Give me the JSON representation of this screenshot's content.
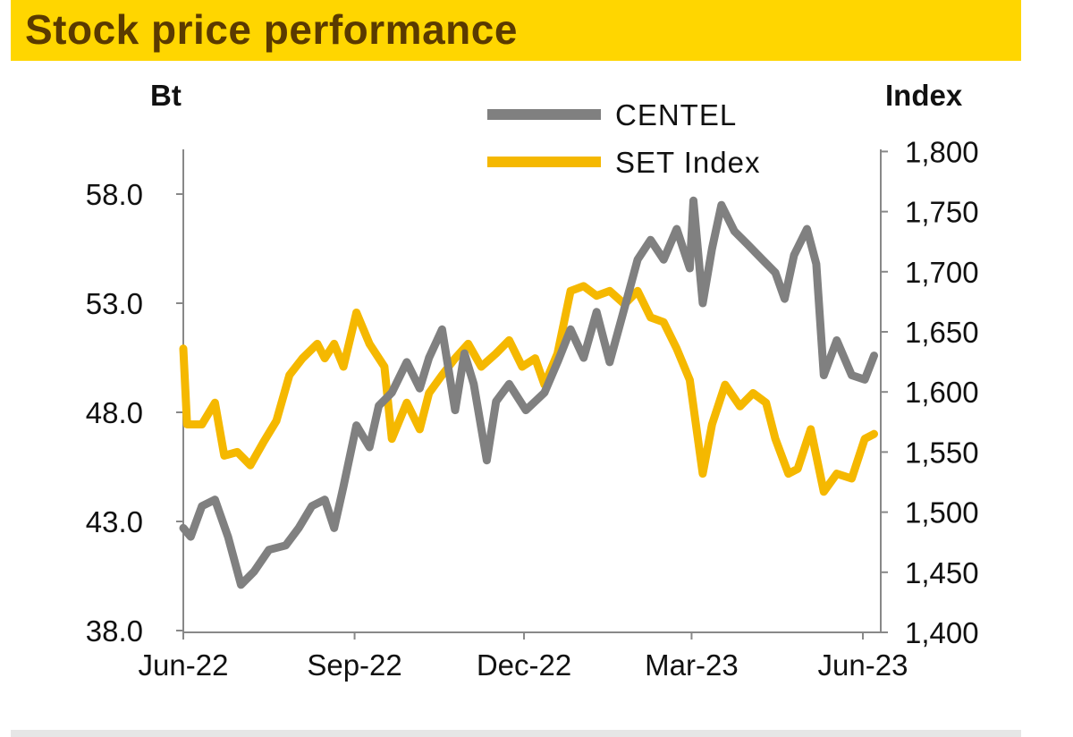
{
  "chart_data": {
    "type": "line",
    "title": "Stock price performance",
    "left_axis": {
      "label": "Bt",
      "ticks": [
        "58.0",
        "53.0",
        "48.0",
        "43.0",
        "38.0"
      ],
      "tick_values": [
        58,
        53,
        48,
        43,
        38
      ],
      "range": [
        38,
        60
      ]
    },
    "right_axis": {
      "label": "Index",
      "ticks": [
        "1,800",
        "1,750",
        "1,700",
        "1,650",
        "1,600",
        "1,550",
        "1,500",
        "1,450",
        "1,400"
      ],
      "tick_values": [
        1800,
        1750,
        1700,
        1650,
        1600,
        1550,
        1500,
        1450,
        1400
      ],
      "range": [
        1400,
        1800
      ]
    },
    "x_axis": {
      "ticks": [
        "Jun-22",
        "Sep-22",
        "Dec-22",
        "Mar-23",
        "Jun-23"
      ],
      "tick_dates": [
        "2022-06-01",
        "2022-09-01",
        "2022-12-01",
        "2023-03-01",
        "2023-06-01"
      ],
      "range": [
        "2022-06-01",
        "2023-06-08"
      ]
    },
    "legend": {
      "placement": "top-center"
    },
    "grid": false,
    "series": [
      {
        "name": "CENTEL",
        "axis": "left",
        "color": "#808080",
        "x": [
          "2022-06-01",
          "2022-06-05",
          "2022-06-11",
          "2022-06-18",
          "2022-06-25",
          "2022-07-02",
          "2022-07-09",
          "2022-07-17",
          "2022-07-26",
          "2022-08-02",
          "2022-08-09",
          "2022-08-16",
          "2022-08-21",
          "2022-08-26",
          "2022-09-02",
          "2022-09-09",
          "2022-09-14",
          "2022-09-21",
          "2022-09-29",
          "2022-10-06",
          "2022-10-11",
          "2022-10-18",
          "2022-10-25",
          "2022-10-30",
          "2022-11-04",
          "2022-11-11",
          "2022-11-16",
          "2022-11-23",
          "2022-12-02",
          "2022-12-12",
          "2022-12-19",
          "2022-12-26",
          "2023-01-02",
          "2023-01-09",
          "2023-01-16",
          "2023-01-24",
          "2023-01-31",
          "2023-02-07",
          "2023-02-14",
          "2023-02-21",
          "2023-02-28",
          "2023-03-02",
          "2023-03-07",
          "2023-03-12",
          "2023-03-17",
          "2023-03-24",
          "2023-03-31",
          "2023-04-08",
          "2023-04-15",
          "2023-04-20",
          "2023-04-25",
          "2023-05-02",
          "2023-05-07",
          "2023-05-11",
          "2023-05-18",
          "2023-05-26",
          "2023-06-02",
          "2023-06-07"
        ],
        "values": [
          42.7,
          42.3,
          43.7,
          44.0,
          42.3,
          40.1,
          40.7,
          41.7,
          41.9,
          42.7,
          43.7,
          44.0,
          42.7,
          44.6,
          47.4,
          46.4,
          48.3,
          48.9,
          50.3,
          49.1,
          50.5,
          51.8,
          48.1,
          50.7,
          49.3,
          45.8,
          48.5,
          49.3,
          48.1,
          48.9,
          50.3,
          51.8,
          50.5,
          52.6,
          50.3,
          52.8,
          55.0,
          55.9,
          55.0,
          56.4,
          54.6,
          57.7,
          53.0,
          55.5,
          57.5,
          56.3,
          55.7,
          55.0,
          54.4,
          53.2,
          55.2,
          56.4,
          54.8,
          49.7,
          51.3,
          49.7,
          49.5,
          50.6
        ]
      },
      {
        "name": "SET Index",
        "axis": "right",
        "color": "#F5B800",
        "x": [
          "2022-06-01",
          "2022-06-03",
          "2022-06-11",
          "2022-06-18",
          "2022-06-23",
          "2022-06-30",
          "2022-07-07",
          "2022-07-14",
          "2022-07-21",
          "2022-07-28",
          "2022-08-04",
          "2022-08-12",
          "2022-08-16",
          "2022-08-21",
          "2022-08-26",
          "2022-09-02",
          "2022-09-09",
          "2022-09-17",
          "2022-09-21",
          "2022-09-29",
          "2022-10-06",
          "2022-10-11",
          "2022-10-18",
          "2022-10-25",
          "2022-11-01",
          "2022-11-08",
          "2022-11-16",
          "2022-11-23",
          "2022-11-30",
          "2022-12-07",
          "2022-12-12",
          "2022-12-19",
          "2022-12-26",
          "2023-01-02",
          "2023-01-09",
          "2023-01-16",
          "2023-01-24",
          "2023-01-31",
          "2023-02-07",
          "2023-02-14",
          "2023-02-21",
          "2023-02-28",
          "2023-03-07",
          "2023-03-12",
          "2023-03-19",
          "2023-03-27",
          "2023-04-03",
          "2023-04-10",
          "2023-04-15",
          "2023-04-22",
          "2023-04-27",
          "2023-05-04",
          "2023-05-11",
          "2023-05-18",
          "2023-05-26",
          "2023-06-02",
          "2023-06-07"
        ],
        "values": [
          1636,
          1573,
          1573,
          1591,
          1547,
          1550,
          1539,
          1558,
          1576,
          1614,
          1628,
          1640,
          1628,
          1640,
          1621,
          1666,
          1640,
          1621,
          1561,
          1591,
          1569,
          1599,
          1614,
          1628,
          1640,
          1621,
          1632,
          1643,
          1621,
          1628,
          1606,
          1632,
          1684,
          1688,
          1680,
          1684,
          1673,
          1684,
          1662,
          1658,
          1636,
          1610,
          1532,
          1573,
          1606,
          1588,
          1599,
          1591,
          1561,
          1532,
          1536,
          1569,
          1517,
          1532,
          1528,
          1561,
          1565
        ]
      }
    ]
  }
}
